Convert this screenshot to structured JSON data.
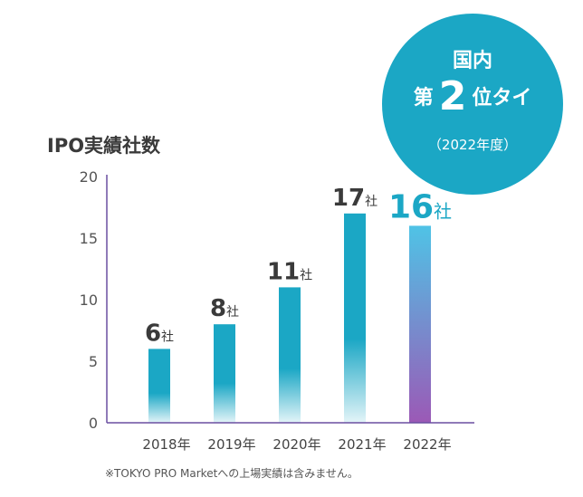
{
  "badge": {
    "line1": "国内",
    "line2_prefix": "第",
    "line2_number": "2",
    "line2_suffix": "位タイ",
    "line3": "（2022年度）"
  },
  "note": "※TOKYO PRO Marketへの上場実績は含みません。",
  "chart_data": {
    "type": "bar",
    "title": "IPO実績社数",
    "categories": [
      "2018年",
      "2019年",
      "2020年",
      "2021年",
      "2022年"
    ],
    "values": [
      6,
      8,
      11,
      17,
      16
    ],
    "value_unit": "社",
    "ylim": [
      0,
      20
    ],
    "yticks": [
      0,
      5,
      10,
      15,
      20
    ],
    "grid": false,
    "colors": {
      "bar": "#1ba7c5",
      "highlight_top": "#4fc3e6",
      "highlight_bottom": "#9b59b6",
      "axis": "#6a4fa0",
      "label": "#3a3a3a",
      "highlight_label": "#1ba7c5"
    },
    "highlight_index": 4
  }
}
